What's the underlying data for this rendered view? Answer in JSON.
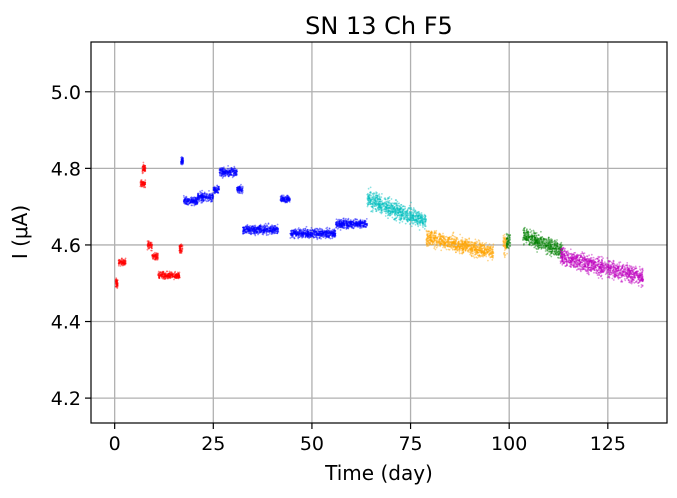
{
  "chart_data": {
    "type": "scatter",
    "title": "SN 13 Ch F5",
    "xlabel": "Time (day)",
    "ylabel": "I (μA)",
    "xlim": [
      -6,
      140
    ],
    "ylim": [
      4.135,
      5.13
    ],
    "xticks": [
      0,
      25,
      50,
      75,
      100,
      125
    ],
    "xtick_labels": [
      "0",
      "25",
      "50",
      "75",
      "100",
      "125"
    ],
    "yticks": [
      4.2,
      4.4,
      4.6,
      4.8,
      5.0
    ],
    "ytick_labels": [
      "4.2",
      "4.4",
      "4.6",
      "4.8",
      "5.0"
    ],
    "grid": true,
    "series": [
      {
        "name": "red",
        "color": "#ff0000",
        "segments": [
          {
            "x": [
              0.2,
              0.8
            ],
            "y": 4.5,
            "spread": 0.02
          },
          {
            "x": [
              1.0,
              2.8
            ],
            "y": 4.555,
            "spread": 0.015
          },
          {
            "x": [
              6.5,
              7.8
            ],
            "y": 4.76,
            "spread": 0.015
          },
          {
            "x": [
              7.0,
              7.8
            ],
            "y": 4.8,
            "spread": 0.02
          },
          {
            "x": [
              8.3,
              9.5
            ],
            "y": 4.6,
            "spread": 0.02
          },
          {
            "x": [
              9.5,
              11.0
            ],
            "y": 4.57,
            "spread": 0.015
          },
          {
            "x": [
              11.0,
              16.5
            ],
            "y": 4.52,
            "spread": 0.015
          },
          {
            "x": [
              16.4,
              17.2
            ],
            "y": 4.59,
            "spread": 0.02
          }
        ]
      },
      {
        "name": "blue",
        "color": "#0000ff",
        "segments": [
          {
            "x": [
              16.8,
              17.4
            ],
            "y": 4.82,
            "spread": 0.015
          },
          {
            "x": [
              17.5,
              21.0
            ],
            "y": 4.715,
            "spread": 0.02
          },
          {
            "x": [
              21.0,
              25.0
            ],
            "y": 4.725,
            "spread": 0.02
          },
          {
            "x": [
              25.0,
              26.5
            ],
            "y": 4.745,
            "spread": 0.015
          },
          {
            "x": [
              26.5,
              31.0
            ],
            "y": 4.79,
            "spread": 0.02
          },
          {
            "x": [
              31.0,
              32.5
            ],
            "y": 4.745,
            "spread": 0.015
          },
          {
            "x": [
              32.5,
              41.5
            ],
            "y": 4.64,
            "spread": 0.02
          },
          {
            "x": [
              42.0,
              44.5
            ],
            "y": 4.72,
            "spread": 0.015
          },
          {
            "x": [
              44.5,
              56.0
            ],
            "y": 4.63,
            "spread": 0.02
          },
          {
            "x": [
              56.0,
              64.0
            ],
            "y": 4.655,
            "spread": 0.02
          }
        ]
      },
      {
        "name": "cyan",
        "color": "#00bfbf",
        "segments": [
          {
            "x": [
              64.0,
              79.0
            ],
            "y": [
              4.72,
              4.66
            ],
            "spread": 0.04
          }
        ]
      },
      {
        "name": "orange",
        "color": "#ffa500",
        "segments": [
          {
            "x": [
              79.0,
              96.0
            ],
            "y": [
              4.62,
              4.58
            ],
            "spread": 0.035
          },
          {
            "x": [
              98.5,
              99.5
            ],
            "y": 4.6,
            "spread": 0.045
          }
        ]
      },
      {
        "name": "green",
        "color": "#008000",
        "segments": [
          {
            "x": [
              99.3,
              100.3
            ],
            "y": 4.61,
            "spread": 0.035
          },
          {
            "x": [
              103.5,
              113.5
            ],
            "y": [
              4.625,
              4.585
            ],
            "spread": 0.035
          }
        ]
      },
      {
        "name": "magenta",
        "color": "#bf00bf",
        "segments": [
          {
            "x": [
              113.0,
              134.0
            ],
            "y": [
              4.57,
              4.515
            ],
            "spread": 0.04
          }
        ]
      }
    ]
  }
}
